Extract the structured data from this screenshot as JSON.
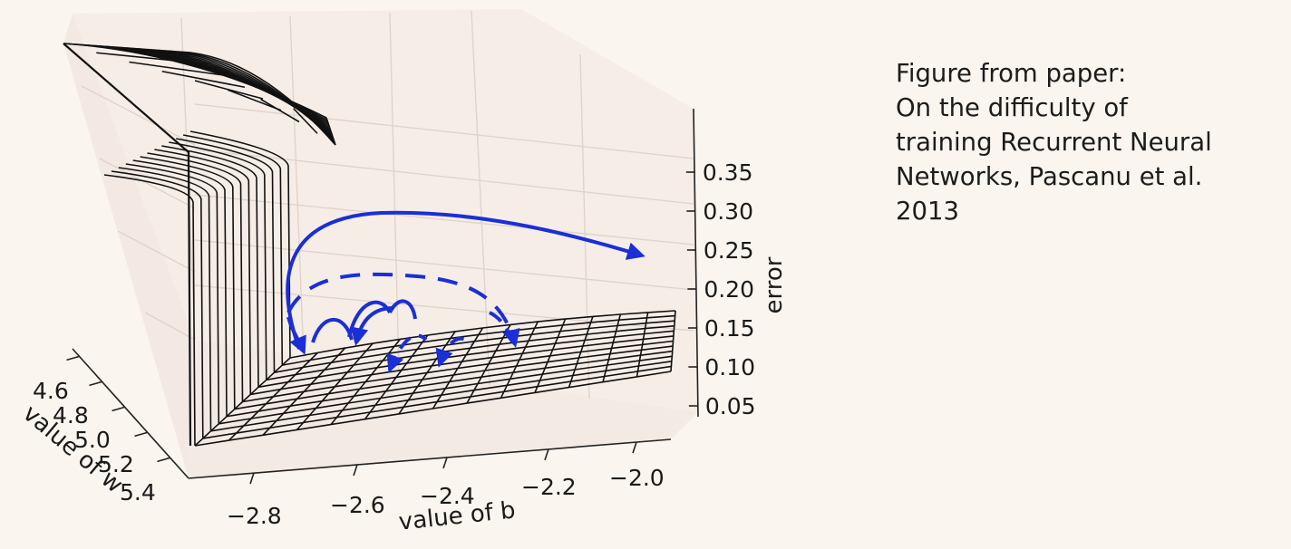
{
  "caption": {
    "lines": [
      "Figure from paper:",
      "On the difficulty of",
      "training Recurrent Neural",
      "Networks, Pascanu et al.",
      "2013"
    ]
  },
  "chart_data": {
    "type": "surface",
    "title": "",
    "xlabel": "value of b",
    "ylabel": "value of w",
    "zlabel": "error",
    "x_ticks": [
      "−2.8",
      "−2.6",
      "−2.4",
      "−2.2",
      "−2.0"
    ],
    "y_ticks": [
      "4.6",
      "4.8",
      "5.0",
      "5.2",
      "5.4"
    ],
    "z_ticks": [
      "0.35",
      "0.30",
      "0.25",
      "0.20",
      "0.15",
      "0.10",
      "0.05"
    ],
    "xlim": [
      -2.9,
      -1.95
    ],
    "ylim": [
      4.5,
      5.45
    ],
    "zlim": [
      0.02,
      0.4
    ],
    "surface": "error surface with a steep wall (cliff) near low w; trajectories of gradient descent shown as blue arrows",
    "grid": true,
    "colors": {
      "surface_edge": "#111111",
      "trajectory": "#1a2fd6",
      "pane": "#f6ece6"
    }
  }
}
